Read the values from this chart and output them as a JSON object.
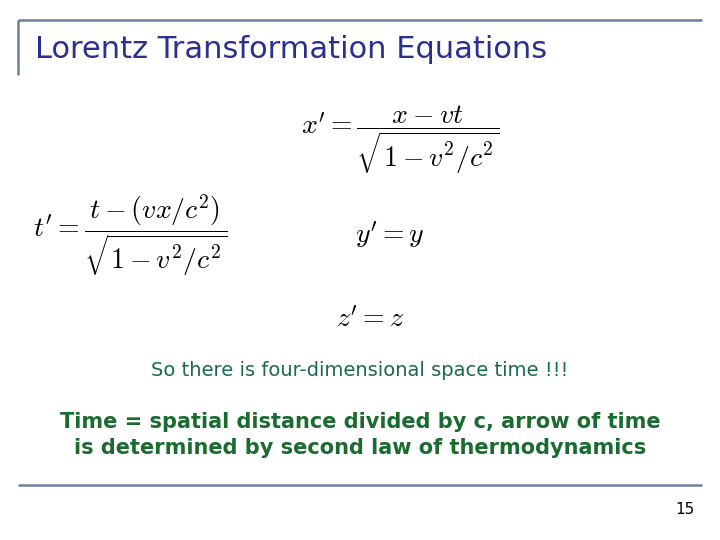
{
  "title": "Lorentz Transformation Equations",
  "title_color": "#2B2F8F",
  "title_fontsize": 22,
  "note1": "So there is four-dimensional space time !!!",
  "note1_color": "#1A6B4A",
  "note1_fontsize": 14,
  "note2_line1": "Time = spatial distance divided by c, arrow of time",
  "note2_line2": "is determined by second law of thermodynamics",
  "note2_color": "#1A6B30",
  "note2_fontsize": 15,
  "page_number": "15",
  "bg_color": "#FFFFFF",
  "eq_color": "#000000",
  "border_color": "#6B7FA3",
  "eq_fontsize": 17
}
